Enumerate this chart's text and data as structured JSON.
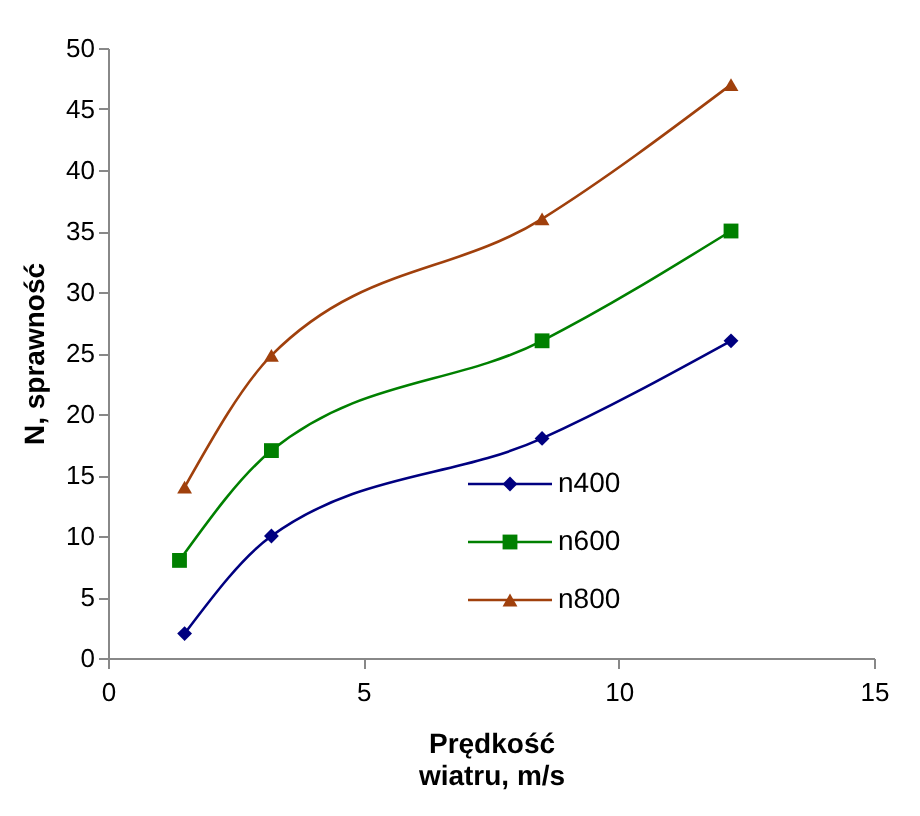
{
  "chart_data": {
    "type": "line",
    "xlabel": "Prędkość\nwiatru, m/s",
    "ylabel": "N, sprawność",
    "xlim": [
      0,
      15
    ],
    "xticks": [
      0,
      5,
      10,
      15
    ],
    "ylim": [
      0,
      50
    ],
    "yticks": [
      0,
      5,
      10,
      15,
      20,
      25,
      30,
      35,
      40,
      45,
      50
    ],
    "grid": false,
    "legend": "right",
    "line_style": "solid",
    "series": [
      {
        "name": "n400",
        "color": "#000080",
        "marker": "diamond",
        "x": [
          1.5,
          3.2,
          8.5,
          12.2
        ],
        "values": [
          2,
          10,
          18,
          26
        ]
      },
      {
        "name": "n600",
        "color": "#008000",
        "marker": "square",
        "x": [
          1.4,
          3.2,
          8.5,
          12.2
        ],
        "values": [
          8,
          17,
          26,
          35
        ]
      },
      {
        "name": "n800",
        "color": "#a0400c",
        "marker": "triangle",
        "x": [
          1.5,
          3.2,
          8.5,
          12.2
        ],
        "values": [
          14,
          24.8,
          36,
          47
        ]
      }
    ]
  }
}
